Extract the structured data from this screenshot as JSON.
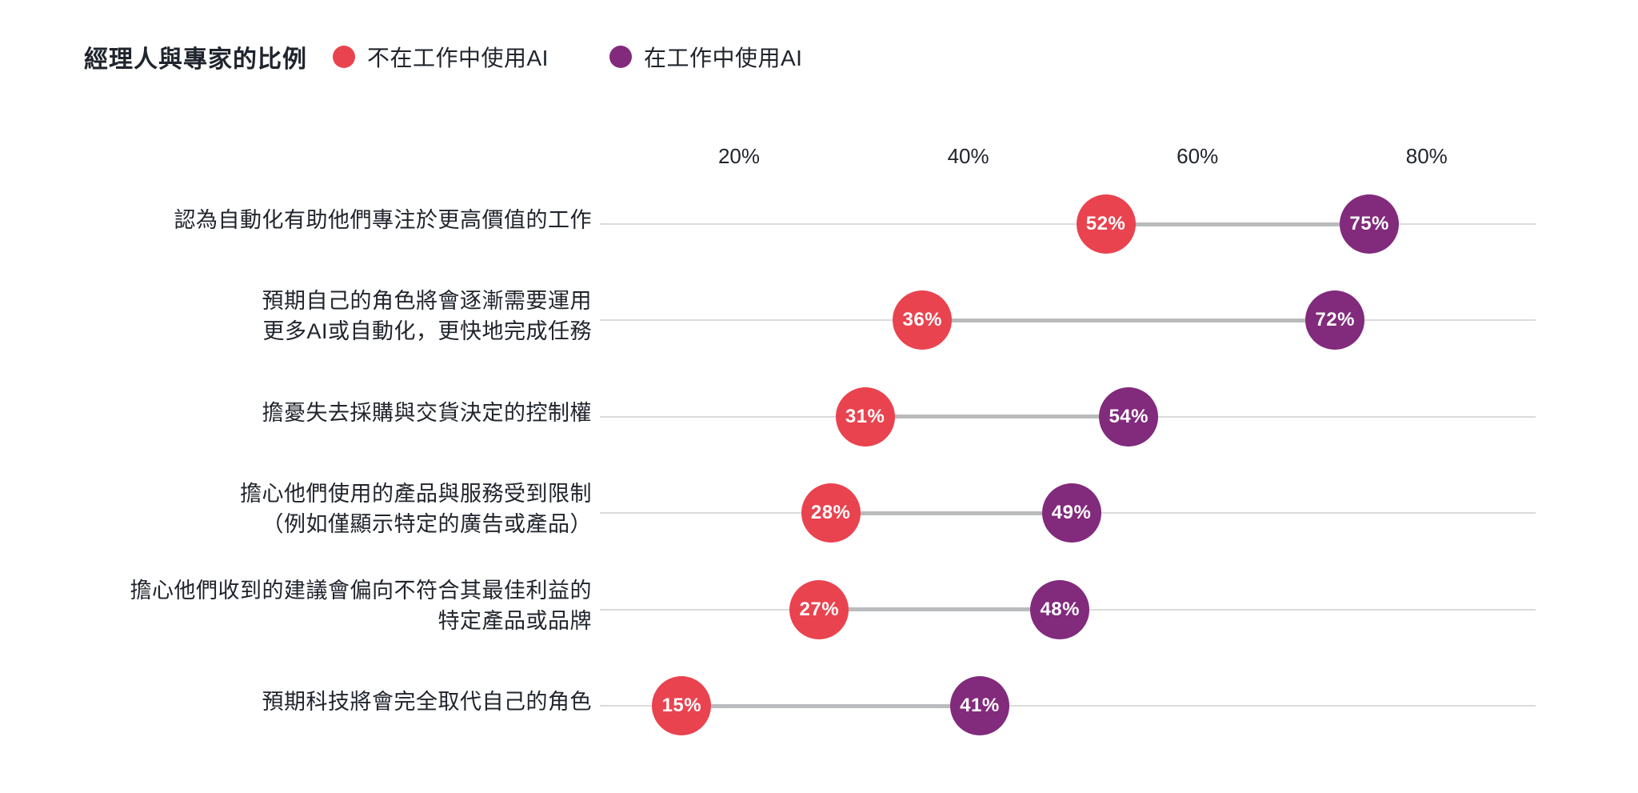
{
  "header": {
    "title": "經理人與專家的比例",
    "legend": [
      {
        "label": "不在工作中使用AI",
        "color": "#E9434F"
      },
      {
        "label": "在工作中使用AI",
        "color": "#822A7C"
      }
    ]
  },
  "colors": {
    "red": "#E9434F",
    "purple": "#822A7C",
    "baseline": "#DADBDC",
    "connector": "#B9BBBD",
    "text": "#20242C",
    "background": "#FFFFFF"
  },
  "chart_data": {
    "type": "dumbbell",
    "title": "經理人與專家的比例",
    "unit": "%",
    "legend_position": "top",
    "grid": "off",
    "axis": {
      "min": 8,
      "max": 89,
      "ticks": [
        {
          "value": 20,
          "label": "20%"
        },
        {
          "value": 40,
          "label": "40%"
        },
        {
          "value": 60,
          "label": "60%"
        },
        {
          "value": 80,
          "label": "80%"
        }
      ]
    },
    "series": [
      {
        "name": "不在工作中使用AI",
        "color": "#E9434F"
      },
      {
        "name": "在工作中使用AI",
        "color": "#822A7C"
      }
    ],
    "rows": [
      {
        "label_lines": [
          "認為自動化有助他們專注於更高價值的工作"
        ],
        "values": [
          52,
          75
        ],
        "value_labels": [
          "52%",
          "75%"
        ]
      },
      {
        "label_lines": [
          "預期自己的角色將會逐漸需要運用",
          "更多AI或自動化，更快地完成任務"
        ],
        "values": [
          36,
          72
        ],
        "value_labels": [
          "36%",
          "72%"
        ]
      },
      {
        "label_lines": [
          "擔憂失去採購與交貨決定的控制權"
        ],
        "values": [
          31,
          54
        ],
        "value_labels": [
          "31%",
          "54%"
        ]
      },
      {
        "label_lines": [
          "擔心他們使用的產品與服務受到限制",
          "（例如僅顯示特定的廣告或產品）"
        ],
        "values": [
          28,
          49
        ],
        "value_labels": [
          "28%",
          "49%"
        ]
      },
      {
        "label_lines": [
          "擔心他們收到的建議會偏向不符合其最佳利益的",
          "特定產品或品牌"
        ],
        "values": [
          27,
          48
        ],
        "value_labels": [
          "27%",
          "48%"
        ]
      },
      {
        "label_lines": [
          "預期科技將會完全取代自己的角色"
        ],
        "values": [
          15,
          41
        ],
        "value_labels": [
          "15%",
          "41%"
        ]
      }
    ]
  }
}
